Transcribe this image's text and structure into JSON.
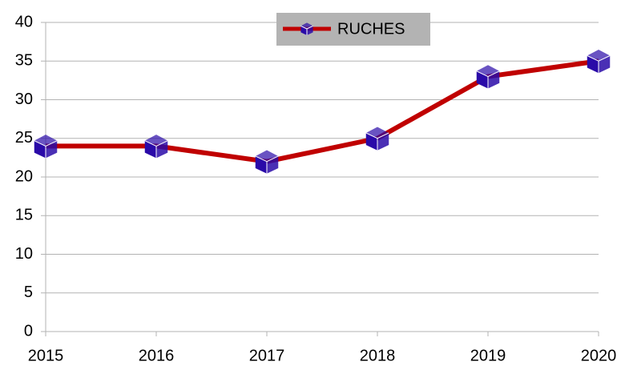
{
  "chart_data": {
    "type": "line",
    "categories": [
      "2015",
      "2016",
      "2017",
      "2018",
      "2019",
      "2020"
    ],
    "series": [
      {
        "name": "RUCHES",
        "color": "#c00000",
        "marker_color": "#2a0aa8",
        "values": [
          24,
          24,
          22,
          25,
          33,
          35
        ]
      }
    ],
    "ylim": [
      0,
      40
    ],
    "yticks": [
      0,
      5,
      10,
      15,
      20,
      25,
      30,
      35,
      40
    ],
    "grid": true,
    "legend": "top"
  }
}
